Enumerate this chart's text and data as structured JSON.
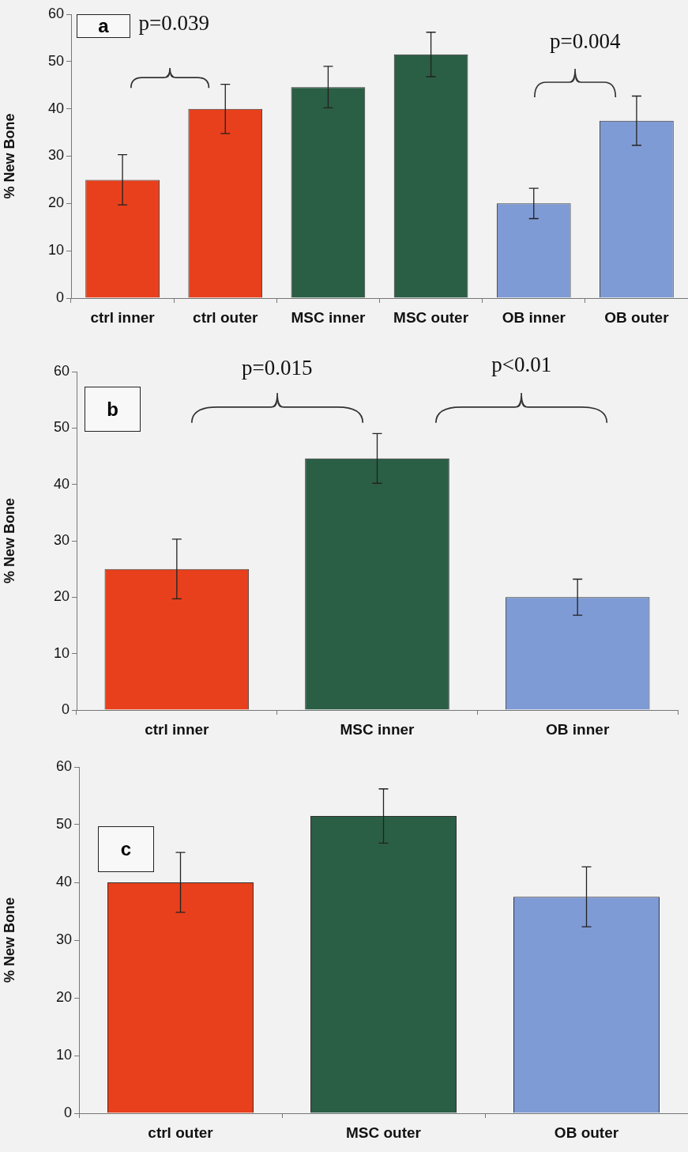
{
  "chart_data": [
    {
      "type": "bar",
      "title": "a",
      "ylabel": "% New Bone",
      "categories": [
        "ctrl inner",
        "ctrl outer",
        "MSC inner",
        "MSC outer",
        "OB inner",
        "OB outer"
      ],
      "values": [
        25,
        40,
        44.6,
        51.5,
        20,
        37.5
      ],
      "errors": [
        5.3,
        5.2,
        4.4,
        4.7,
        3.2,
        5.2
      ],
      "colors": [
        "#e8401c",
        "#e8401c",
        "#2a5e45",
        "#2a5e45",
        "#7f9bd5",
        "#7f9bd5"
      ],
      "ylim": [
        0,
        60
      ],
      "yticks": [
        0,
        10,
        20,
        30,
        40,
        50,
        60
      ],
      "grid": false,
      "legend": false,
      "annotations": [
        "p=0.039",
        "p=0.004"
      ]
    },
    {
      "type": "bar",
      "title": "b",
      "ylabel": "% New Bone",
      "categories": [
        "ctrl inner",
        "MSC inner",
        "OB inner"
      ],
      "values": [
        25,
        44.6,
        20
      ],
      "errors": [
        5.3,
        4.4,
        3.2
      ],
      "colors": [
        "#e8401c",
        "#2a5e45",
        "#7f9bd5"
      ],
      "ylim": [
        0,
        60
      ],
      "yticks": [
        0,
        10,
        20,
        30,
        40,
        50,
        60
      ],
      "grid": false,
      "legend": false,
      "annotations": [
        "p=0.015",
        "p<0.01"
      ]
    },
    {
      "type": "bar",
      "title": "c",
      "ylabel": "% New Bone",
      "categories": [
        "ctrl outer",
        "MSC outer",
        "OB outer"
      ],
      "values": [
        40,
        51.5,
        37.5
      ],
      "errors": [
        5.2,
        4.7,
        5.2
      ],
      "colors": [
        "#e8401c",
        "#2a5e45",
        "#7f9bd5"
      ],
      "ylim": [
        0,
        60
      ],
      "yticks": [
        0,
        10,
        20,
        30,
        40,
        50,
        60
      ],
      "grid": false,
      "legend": false
    }
  ]
}
